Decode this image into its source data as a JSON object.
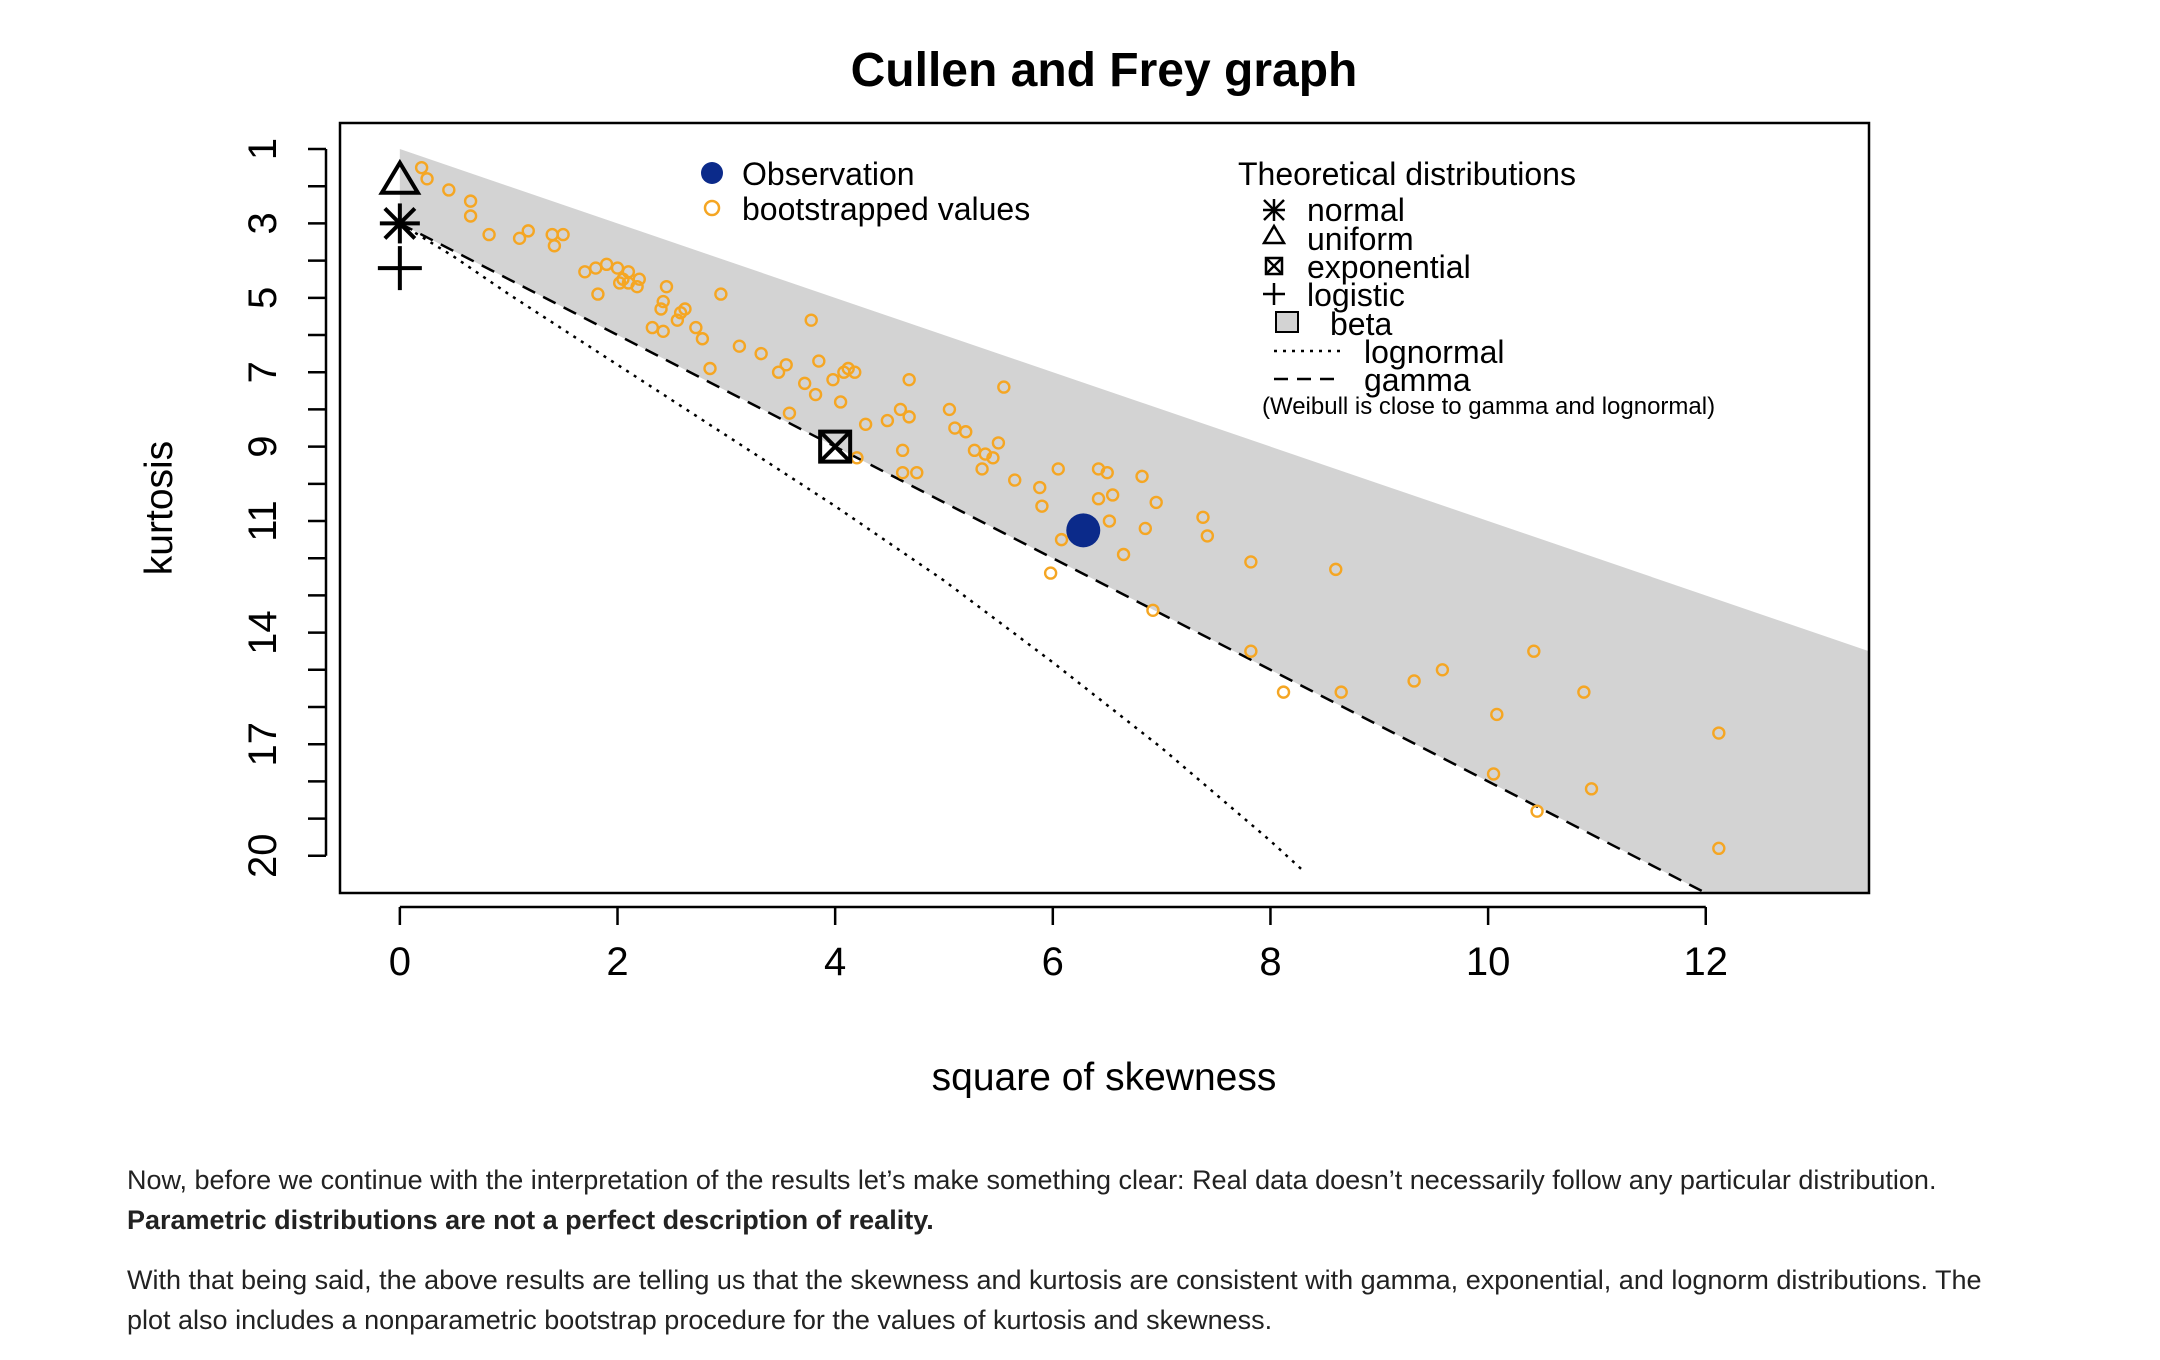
{
  "chart_data": {
    "type": "scatter",
    "title": "Cullen and Frey graph",
    "xlabel": "square of skewness",
    "ylabel": "kurtosis",
    "xlim": [
      -0.55,
      13.5
    ],
    "ylim": [
      21,
      0.3
    ],
    "y_inverted": true,
    "x_ticks": [
      0,
      2,
      4,
      6,
      8,
      10,
      12
    ],
    "y_ticks": [
      1,
      2,
      3,
      4,
      5,
      6,
      7,
      8,
      9,
      10,
      11,
      12,
      13,
      14,
      15,
      16,
      17,
      18,
      19,
      20
    ],
    "y_tick_labels": [
      "1",
      "",
      "3",
      "",
      "5",
      "",
      "7",
      "",
      "9",
      "",
      "11",
      "",
      "",
      "14",
      "",
      "",
      "17",
      "",
      "",
      "20"
    ],
    "legend_left": {
      "position": "top-center",
      "observation_label": "Observation",
      "bootstrap_label": "bootstrapped values"
    },
    "legend_right": {
      "position": "top-right",
      "title": "Theoretical distributions",
      "normal": "normal",
      "uniform": "uniform",
      "exponential": "exponential",
      "logistic": "logistic",
      "beta": "beta",
      "lognormal": "lognormal",
      "gamma": "gamma",
      "note": "(Weibull is close to gamma and lognormal)"
    },
    "colors": {
      "observation": "#0b2a8a",
      "bootstrap": "#f5a623",
      "beta_region": "#d3d3d3",
      "axis": "#000000"
    },
    "observation": {
      "x": 6.28,
      "y": 11.25
    },
    "theoretical_points": {
      "normal": {
        "x": 0,
        "y": 3
      },
      "uniform": {
        "x": 0,
        "y": 1.8
      },
      "exponential": {
        "x": 4,
        "y": 9
      },
      "logistic": {
        "x": 0,
        "y": 4.2
      }
    },
    "beta_region": {
      "upper": "y = x + 1",
      "lower": "y = 1.5x + 3",
      "x_range": [
        0,
        13.5
      ]
    },
    "gamma_line": {
      "equation": "y = 1.5x + 3"
    },
    "lognormal_line": [
      [
        0,
        3
      ],
      [
        0.5,
        3.9
      ],
      [
        1,
        4.9
      ],
      [
        2,
        6.8
      ],
      [
        3,
        8.7
      ],
      [
        4,
        10.6
      ],
      [
        5,
        12.6
      ],
      [
        6,
        14.8
      ],
      [
        7,
        17.1
      ],
      [
        8,
        19.6
      ],
      [
        8.3,
        20.4
      ]
    ],
    "bootstrap_points": [
      [
        0.2,
        1.5
      ],
      [
        0.25,
        1.8
      ],
      [
        0.45,
        2.1
      ],
      [
        0.65,
        2.4
      ],
      [
        0.65,
        2.8
      ],
      [
        0.82,
        3.3
      ],
      [
        1.1,
        3.4
      ],
      [
        1.18,
        3.2
      ],
      [
        1.4,
        3.3
      ],
      [
        1.42,
        3.6
      ],
      [
        1.5,
        3.3
      ],
      [
        1.7,
        4.3
      ],
      [
        1.8,
        4.2
      ],
      [
        1.9,
        4.1
      ],
      [
        1.82,
        4.9
      ],
      [
        2.0,
        4.2
      ],
      [
        2.02,
        4.6
      ],
      [
        2.05,
        4.5
      ],
      [
        2.1,
        4.3
      ],
      [
        2.1,
        4.6
      ],
      [
        2.18,
        4.7
      ],
      [
        2.2,
        4.5
      ],
      [
        2.32,
        5.8
      ],
      [
        2.4,
        5.3
      ],
      [
        2.42,
        5.1
      ],
      [
        2.42,
        5.9
      ],
      [
        2.45,
        4.7
      ],
      [
        2.55,
        5.6
      ],
      [
        2.58,
        5.4
      ],
      [
        2.62,
        5.3
      ],
      [
        2.72,
        5.8
      ],
      [
        2.78,
        6.1
      ],
      [
        2.85,
        6.9
      ],
      [
        2.95,
        4.9
      ],
      [
        3.12,
        6.3
      ],
      [
        3.32,
        6.5
      ],
      [
        3.48,
        7.0
      ],
      [
        3.55,
        6.8
      ],
      [
        3.58,
        8.1
      ],
      [
        3.72,
        7.3
      ],
      [
        3.78,
        5.6
      ],
      [
        3.82,
        7.6
      ],
      [
        3.85,
        6.7
      ],
      [
        3.98,
        7.2
      ],
      [
        4.05,
        7.8
      ],
      [
        4.08,
        7.0
      ],
      [
        4.12,
        6.9
      ],
      [
        4.18,
        7.0
      ],
      [
        4.2,
        9.3
      ],
      [
        4.28,
        8.4
      ],
      [
        4.48,
        8.3
      ],
      [
        4.6,
        8.0
      ],
      [
        4.62,
        9.1
      ],
      [
        4.62,
        9.7
      ],
      [
        4.68,
        8.2
      ],
      [
        4.68,
        7.2
      ],
      [
        4.75,
        9.7
      ],
      [
        5.05,
        8.0
      ],
      [
        5.1,
        8.5
      ],
      [
        5.2,
        8.6
      ],
      [
        5.28,
        9.1
      ],
      [
        5.35,
        9.6
      ],
      [
        5.38,
        9.2
      ],
      [
        5.45,
        9.3
      ],
      [
        5.5,
        8.9
      ],
      [
        5.55,
        7.4
      ],
      [
        5.65,
        9.9
      ],
      [
        5.88,
        10.1
      ],
      [
        5.9,
        10.6
      ],
      [
        5.98,
        12.4
      ],
      [
        6.05,
        9.6
      ],
      [
        6.08,
        11.5
      ],
      [
        6.42,
        9.6
      ],
      [
        6.42,
        10.4
      ],
      [
        6.5,
        9.7
      ],
      [
        6.52,
        11.0
      ],
      [
        6.55,
        10.3
      ],
      [
        6.65,
        11.9
      ],
      [
        6.82,
        9.8
      ],
      [
        6.85,
        11.2
      ],
      [
        6.92,
        13.4
      ],
      [
        6.95,
        10.5
      ],
      [
        7.38,
        10.9
      ],
      [
        7.42,
        11.4
      ],
      [
        7.82,
        12.1
      ],
      [
        7.82,
        14.5
      ],
      [
        8.12,
        15.6
      ],
      [
        8.6,
        12.3
      ],
      [
        8.65,
        15.6
      ],
      [
        9.32,
        15.3
      ],
      [
        9.58,
        15.0
      ],
      [
        10.08,
        16.2
      ],
      [
        10.05,
        17.8
      ],
      [
        10.42,
        14.5
      ],
      [
        10.45,
        18.8
      ],
      [
        10.88,
        15.6
      ],
      [
        10.95,
        18.2
      ],
      [
        12.12,
        16.7
      ],
      [
        12.12,
        19.8
      ]
    ]
  },
  "article": {
    "p1_text": "Now, before we continue with the interpretation of the results let’s make something clear: Real data doesn’t necessarily follow any particular distribution. ",
    "p1_bold": "Parametric distributions are not a perfect description of reality.",
    "p2_text": "With that being said, the above results are telling us that the skewness and kurtosis are consistent with gamma, exponential, and lognorm distributions. The plot also includes a nonparametric bootstrap procedure for the values of kurtosis and skewness."
  }
}
